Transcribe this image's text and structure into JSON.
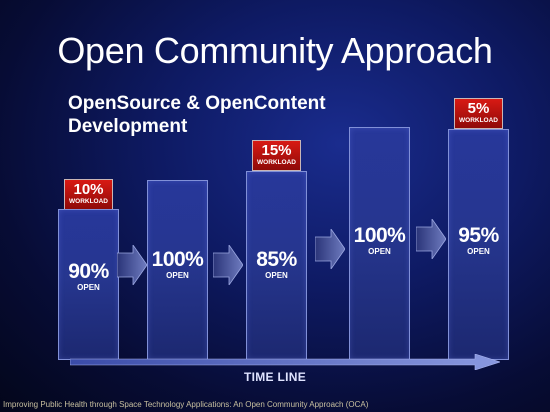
{
  "title": "Open Community Approach",
  "subtitle": "OpenSource & OpenContent Development",
  "stages": [
    {
      "open_pct": "90%",
      "open_label": "OPEN",
      "workload_pct": "10%",
      "workload_label": "WORKLOAD"
    },
    {
      "open_pct": "100%",
      "open_label": "OPEN"
    },
    {
      "open_pct": "85%",
      "open_label": "OPEN",
      "workload_pct": "15%",
      "workload_label": "WORKLOAD"
    },
    {
      "open_pct": "100%",
      "open_label": "OPEN"
    },
    {
      "open_pct": "95%",
      "open_label": "OPEN",
      "workload_pct": "5%",
      "workload_label": "WORKLOAD"
    }
  ],
  "timeline_label": "TIME LINE",
  "footer": "Improving Public Health through Space Technology Applications: An Open Community Approach (OCA)",
  "colors": {
    "background": "#0e1a63",
    "column": "#27379a",
    "workload": "#c8150f",
    "arrow": "#5d6ab0",
    "footer_text": "#c8c0a0"
  }
}
